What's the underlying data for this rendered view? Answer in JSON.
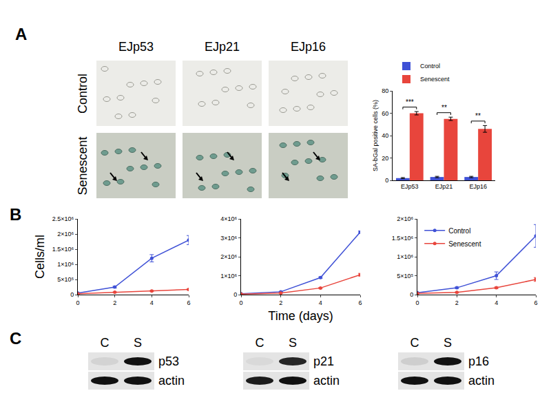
{
  "panel_labels": [
    "A",
    "B",
    "C"
  ],
  "images": {
    "columns": [
      "EJp53",
      "EJp21",
      "EJp16"
    ],
    "rows": [
      "Control",
      "Senescent"
    ]
  },
  "chart_data": [
    {
      "type": "bar",
      "y_label": "SA-bGal positive cells (%)",
      "categories": [
        "EJp53",
        "EJp21",
        "EJp16"
      ],
      "ylim": [
        0,
        80
      ],
      "yticks": [
        0,
        20,
        40,
        60,
        80
      ],
      "grid": false,
      "legend": "top",
      "series": [
        {
          "name": "Control",
          "color": "#3f51d6",
          "values": [
            2,
            3,
            3
          ],
          "errors": [
            0.5,
            0.6,
            0.6
          ]
        },
        {
          "name": "Senescent",
          "color": "#e8453c",
          "values": [
            60,
            55,
            46
          ],
          "errors": [
            1.5,
            1.5,
            3
          ]
        }
      ],
      "significance": [
        "***",
        "**",
        "**"
      ]
    },
    {
      "type": "line",
      "y_label": "Cells/ml",
      "x": [
        0,
        2,
        4,
        6
      ],
      "xlim": [
        0,
        6
      ],
      "xticks": [
        0,
        2,
        4,
        6
      ],
      "ylim": [
        0,
        2500000
      ],
      "yticks": [
        0,
        {
          "value": 500000,
          "label": "5×10⁵"
        },
        {
          "value": 1000000,
          "label": "1×10⁶"
        },
        {
          "value": 1500000,
          "label": "1.5×10⁶"
        },
        {
          "value": 2000000,
          "label": "2×10⁶"
        },
        {
          "value": 2500000,
          "label": "2.5×10⁶"
        }
      ],
      "grid": false,
      "series": [
        {
          "color": "#3f51d6",
          "marker": "circle",
          "line_style": "solid",
          "values": [
            50000,
            250000,
            1200000,
            1800000
          ],
          "errors": [
            10000,
            30000,
            120000,
            150000
          ]
        },
        {
          "color": "#e8453c",
          "marker": "circle",
          "line_style": "solid",
          "values": [
            30000,
            80000,
            120000,
            170000
          ],
          "errors": [
            5000,
            10000,
            15000,
            20000
          ]
        }
      ]
    },
    {
      "type": "line",
      "x_label": "Time (days)",
      "x": [
        0,
        2,
        4,
        6
      ],
      "xlim": [
        0,
        6
      ],
      "xticks": [
        0,
        2,
        4,
        6
      ],
      "ylim": [
        0,
        4000000
      ],
      "yticks": [
        0,
        {
          "value": 1000000,
          "label": "1×10⁶"
        },
        {
          "value": 2000000,
          "label": "2×10⁶"
        },
        {
          "value": 3000000,
          "label": "3×10⁶"
        },
        {
          "value": 4000000,
          "label": "4×10⁶"
        }
      ],
      "grid": false,
      "series": [
        {
          "color": "#3f51d6",
          "marker": "circle",
          "line_style": "solid",
          "values": [
            50000,
            150000,
            900000,
            3300000
          ],
          "errors": [
            10000,
            20000,
            40000,
            60000
          ]
        },
        {
          "color": "#e8453c",
          "marker": "circle",
          "line_style": "solid",
          "values": [
            30000,
            80000,
            350000,
            1050000
          ],
          "errors": [
            5000,
            10000,
            30000,
            70000
          ]
        }
      ]
    },
    {
      "type": "line",
      "x": [
        0,
        2,
        4,
        6
      ],
      "xlim": [
        0,
        6
      ],
      "xticks": [
        0,
        2,
        4,
        6
      ],
      "ylim": [
        0,
        2000000
      ],
      "yticks": [
        0,
        {
          "value": 500000,
          "label": "5×10⁵"
        },
        {
          "value": 1000000,
          "label": "1×10⁶"
        },
        {
          "value": 1500000,
          "label": "1.5×10⁶"
        },
        {
          "value": 2000000,
          "label": "2×10⁶"
        }
      ],
      "grid": false,
      "legend": "top left",
      "series": [
        {
          "name": "Control",
          "color": "#3f51d6",
          "marker": "circle",
          "line_style": "solid",
          "values": [
            50000,
            180000,
            500000,
            1550000
          ],
          "errors": [
            10000,
            20000,
            100000,
            300000
          ]
        },
        {
          "name": "Senescent",
          "color": "#e8453c",
          "marker": "circle",
          "line_style": "solid",
          "values": [
            30000,
            60000,
            180000,
            400000
          ],
          "errors": [
            5000,
            10000,
            20000,
            50000
          ]
        }
      ]
    }
  ],
  "blots": [
    {
      "lanes": [
        "C",
        "S"
      ],
      "rows": [
        {
          "label": "p53",
          "intensity": [
            0.08,
            1
          ]
        },
        {
          "label": "actin",
          "intensity": [
            1,
            1
          ]
        }
      ]
    },
    {
      "lanes": [
        "C",
        "S"
      ],
      "rows": [
        {
          "label": "p21",
          "intensity": [
            0.05,
            0.9
          ]
        },
        {
          "label": "actin",
          "intensity": [
            0.95,
            1
          ]
        }
      ]
    },
    {
      "lanes": [
        "C",
        "S"
      ],
      "rows": [
        {
          "label": "p16",
          "intensity": [
            0.1,
            1
          ]
        },
        {
          "label": "actin",
          "intensity": [
            1,
            1
          ]
        }
      ]
    }
  ]
}
